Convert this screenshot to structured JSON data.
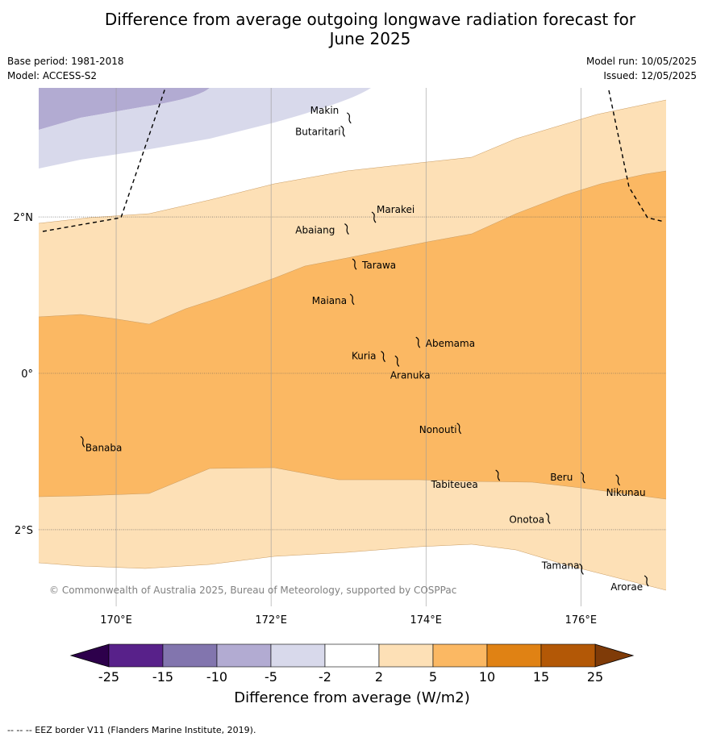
{
  "title_line1": "Difference from average outgoing longwave radiation forecast for",
  "title_line2": "June 2025",
  "base_period": "Base period: 1981-2018",
  "model": "Model: ACCESS-S2",
  "model_run": "Model run: 10/05/2025",
  "issued": "Issued: 12/05/2025",
  "copyright": "© Commonwealth of Australia 2025, Bureau of Meteorology, supported by COSPPac",
  "footer": "--  --  -- EEZ border V11 (Flanders Marine Institute, 2019).",
  "map": {
    "lon_range": [
      169.0,
      177.1
    ],
    "lat_range": [
      -2.98,
      3.65
    ],
    "lon_ticks": [
      {
        "v": 170,
        "label": "170°E"
      },
      {
        "v": 172,
        "label": "172°E"
      },
      {
        "v": 174,
        "label": "174°E"
      },
      {
        "v": 176,
        "label": "176°E"
      }
    ],
    "lat_ticks": [
      {
        "v": 2,
        "label": "2°N"
      },
      {
        "v": 0,
        "label": "0°"
      },
      {
        "v": -2,
        "label": "2°S"
      }
    ],
    "islands": [
      {
        "name": "Makin",
        "lon": 172.98,
        "lat": 3.27
      },
      {
        "name": "Butaritari",
        "lon": 172.9,
        "lat": 3.1
      },
      {
        "name": "Marakei",
        "lon": 173.3,
        "lat": 2.0
      },
      {
        "name": "Abaiang",
        "lon": 172.95,
        "lat": 1.85
      },
      {
        "name": "Tarawa",
        "lon": 173.05,
        "lat": 1.4
      },
      {
        "name": "Maiana",
        "lon": 173.02,
        "lat": 0.95
      },
      {
        "name": "Abemama",
        "lon": 173.87,
        "lat": 0.4
      },
      {
        "name": "Kuria",
        "lon": 173.42,
        "lat": 0.22
      },
      {
        "name": "Aranuka",
        "lon": 173.6,
        "lat": 0.16
      },
      {
        "name": "Nonouti",
        "lon": 174.4,
        "lat": -0.7
      },
      {
        "name": "Banaba",
        "lon": 169.54,
        "lat": -0.87
      },
      {
        "name": "Tabiteuea",
        "lon": 174.9,
        "lat": -1.3
      },
      {
        "name": "Beru",
        "lon": 176.0,
        "lat": -1.33
      },
      {
        "name": "Nikunau",
        "lon": 176.45,
        "lat": -1.36
      },
      {
        "name": "Onotoa",
        "lon": 175.55,
        "lat": -1.85
      },
      {
        "name": "Tamana",
        "lon": 175.98,
        "lat": -2.5
      },
      {
        "name": "Arorae",
        "lon": 176.82,
        "lat": -2.65
      }
    ]
  },
  "colorbar": {
    "title": "Difference from average (W/m2)",
    "ticks": [
      "-25",
      "-15",
      "-10",
      "-5",
      "-2",
      "2",
      "5",
      "10",
      "15",
      "25"
    ],
    "bins": [
      {
        "range": "-25 to -15",
        "color": "#58218a"
      },
      {
        "range": "-15 to -10",
        "color": "#8275ae"
      },
      {
        "range": "-10 to -5",
        "color": "#b2abd2"
      },
      {
        "range": "-5 to -2",
        "color": "#d8d9eb"
      },
      {
        "range": "-2 to 2",
        "color": "#ffffff"
      },
      {
        "range": "2 to 5",
        "color": "#fde0b6"
      },
      {
        "range": "5 to 10",
        "color": "#fbb863"
      },
      {
        "range": "10 to 15",
        "color": "#e08214"
      },
      {
        "range": "15 to 25",
        "color": "#b35806"
      }
    ],
    "under_color": "#2d004b",
    "over_color": "#7f3b08"
  }
}
